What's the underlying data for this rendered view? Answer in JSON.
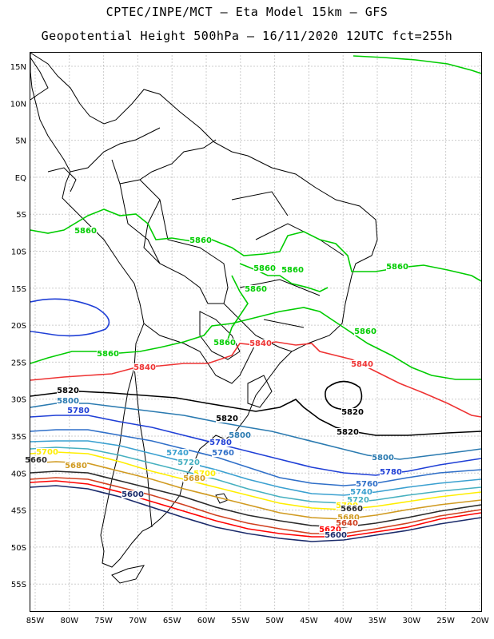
{
  "title": {
    "line1": "CPTEC/INPE/MCT –  Eta Model 15km – GFS",
    "line2": "Geopotential Height 500hPa – 16/11/2020 12UTC fct=255h"
  },
  "axes": {
    "lat_labels": [
      "15N",
      "10N",
      "5N",
      "EQ",
      "5S",
      "10S",
      "15S",
      "20S",
      "25S",
      "30S",
      "35S",
      "40S",
      "45S",
      "50S",
      "55S"
    ],
    "lon_labels": [
      "85W",
      "80W",
      "75W",
      "70W",
      "65W",
      "60W",
      "55W",
      "50W",
      "45W",
      "40W",
      "35W",
      "30W",
      "25W",
      "20W"
    ]
  },
  "colors": {
    "c5860": "#00cc00",
    "c5840": "#ee3333",
    "c5820": "#000000",
    "c5800": "#2a7ab0",
    "c5780": "#1f3fd6",
    "c5760": "#2f6fc8",
    "c5740": "#3aa0d0",
    "c5720": "#46b0c0",
    "c5700": "#ffee00",
    "c5680": "#d09a20",
    "c5660": "#2a2a2a",
    "c5640": "#d04020",
    "c5620": "#ff0000",
    "c5600": "#1a2a6a"
  },
  "contour_labels": [
    {
      "id": "l5860a",
      "text": "5860"
    },
    {
      "id": "l5860b",
      "text": "5860"
    },
    {
      "id": "l5860c",
      "text": "5860"
    },
    {
      "id": "l5860d",
      "text": "5860"
    },
    {
      "id": "l5860e",
      "text": "5860"
    },
    {
      "id": "l5860f",
      "text": "5860"
    },
    {
      "id": "l5860g",
      "text": "5860"
    },
    {
      "id": "l5860h",
      "text": "5860"
    },
    {
      "id": "l5860i",
      "text": "5860"
    },
    {
      "id": "l5840a",
      "text": "5840"
    },
    {
      "id": "l5840b",
      "text": "5840"
    },
    {
      "id": "l5840c",
      "text": "5840"
    },
    {
      "id": "l5820a",
      "text": "5820"
    },
    {
      "id": "l5820b",
      "text": "5820"
    },
    {
      "id": "l5820c",
      "text": "5820"
    },
    {
      "id": "l5820d",
      "text": "5820"
    },
    {
      "id": "l5800a",
      "text": "5800"
    },
    {
      "id": "l5800b",
      "text": "5800"
    },
    {
      "id": "l5800c",
      "text": "5800"
    },
    {
      "id": "l5780a",
      "text": "5780"
    },
    {
      "id": "l5780b",
      "text": "5780"
    },
    {
      "id": "l5780c",
      "text": "5780"
    },
    {
      "id": "l5760a",
      "text": "5760"
    },
    {
      "id": "l5760b",
      "text": "5760"
    },
    {
      "id": "l5740a",
      "text": "5740"
    },
    {
      "id": "l5740b",
      "text": "5740"
    },
    {
      "id": "l5720a",
      "text": "5720"
    },
    {
      "id": "l5720b",
      "text": "5720"
    },
    {
      "id": "l5700a",
      "text": "5700"
    },
    {
      "id": "l5700b",
      "text": "5700"
    },
    {
      "id": "l5700c",
      "text": "5700"
    },
    {
      "id": "l5680a",
      "text": "5680"
    },
    {
      "id": "l5680b",
      "text": "5680"
    },
    {
      "id": "l5680c",
      "text": "5680"
    },
    {
      "id": "l5660a",
      "text": "5660"
    },
    {
      "id": "l5660b",
      "text": "5660"
    },
    {
      "id": "l5640a",
      "text": "5640"
    },
    {
      "id": "l5620a",
      "text": "5620"
    },
    {
      "id": "l5600a",
      "text": "5600"
    },
    {
      "id": "l5600b",
      "text": "5600"
    }
  ]
}
